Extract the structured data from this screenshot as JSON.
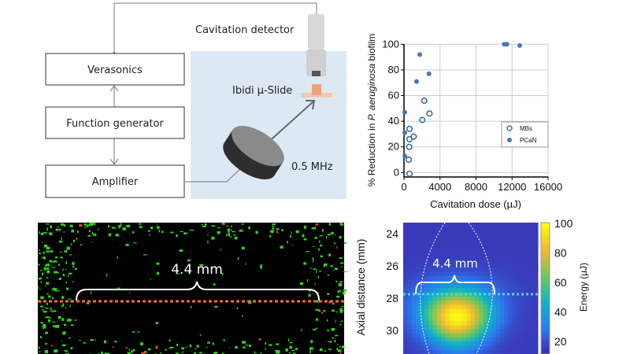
{
  "diagram": {
    "boxes": [
      "Verasonics",
      "Function generator",
      "Amplifier"
    ],
    "cavitation_detector": "Cavitation detector",
    "slide": "Ibidi µ-Slide",
    "transducer_frequency": "0.5 MHz",
    "colors": {
      "tank": "#dce9f5",
      "transducer": "#3a3a3a",
      "slide": "#f3b48e",
      "detector": "#d8d8d8"
    }
  },
  "chart_data": {
    "type": "scatter",
    "xlabel": "Cavitation dose (µJ)",
    "ylabel_prefix": "% Reduction in ",
    "ylabel_italic": "P. aeruginosa",
    "ylabel_suffix": " biofilm",
    "xlim": [
      0,
      16000
    ],
    "ylim": [
      -4,
      100
    ],
    "xticks": [
      "0",
      "4000",
      "8000",
      "12000",
      "16000"
    ],
    "yticks": [
      "0",
      "20",
      "40",
      "60",
      "80",
      "100"
    ],
    "grid": true,
    "legend_placement": "right",
    "series": [
      {
        "name": "MBs",
        "marker": "open-circle",
        "color": "#3b6ea8",
        "points": [
          [
            610,
            -1
          ],
          [
            530,
            10
          ],
          [
            580,
            20
          ],
          [
            610,
            26
          ],
          [
            610,
            34
          ],
          [
            1080,
            28
          ],
          [
            2040,
            41
          ],
          [
            2830,
            46
          ],
          [
            2250,
            56
          ]
        ]
      },
      {
        "name": "PCaN",
        "marker": "filled-circle",
        "color": "#4a78b0",
        "points": [
          [
            90,
            47
          ],
          [
            90,
            31
          ],
          [
            90,
            13
          ],
          [
            1400,
            71
          ],
          [
            1750,
            92
          ],
          [
            2770,
            77
          ],
          [
            11130,
            100
          ],
          [
            11420,
            100
          ],
          [
            12850,
            99
          ]
        ]
      }
    ]
  },
  "microscopy": {
    "annotation": "4.4 mm",
    "line_color": "#f26b3a"
  },
  "heatmap": {
    "annotation": "4.4 mm",
    "ylabel": "Axial distance (mm)",
    "yticks": [
      "24",
      "26",
      "28",
      "30"
    ],
    "colorbar_label": "Energy (µJ)",
    "colorbar_ticks": [
      "20",
      "40",
      "60",
      "80",
      "100"
    ],
    "line_color": "#4fd6d6"
  }
}
